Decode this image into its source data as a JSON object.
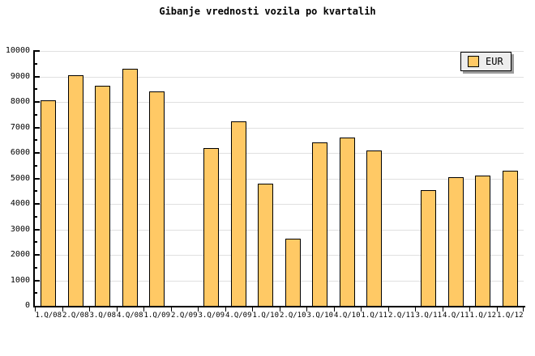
{
  "title": "Gibanje vrednosti vozila po kvartalih",
  "legend": {
    "label": "EUR",
    "position": "top-right"
  },
  "colors": {
    "background": "#FFFFFF",
    "bar_fill": "#FFC965",
    "bar_border": "#000000",
    "gridline": "#E0E0E0",
    "axis": "#000000",
    "legend_bg": "#EDEDED",
    "legend_shadow": "#9C9C9C",
    "text": "#000000"
  },
  "chart_data": {
    "type": "bar",
    "title": "Gibanje vrednosti vozila po kvartalih",
    "xlabel": "",
    "ylabel": "",
    "categories": [
      "1.Q/08",
      "2.Q/08",
      "3.Q/08",
      "4.Q/08",
      "1.Q/09",
      "2.Q/09",
      "3.Q/09",
      "4.Q/09",
      "1.Q/10",
      "2.Q/10",
      "3.Q/10",
      "4.Q/10",
      "1.Q/11",
      "2.Q/11",
      "3.Q/11",
      "4.Q/11",
      "1.Q/12",
      "1.Q/12"
    ],
    "series": [
      {
        "name": "EUR",
        "values": [
          8050,
          9050,
          8650,
          9300,
          8400,
          null,
          6200,
          7250,
          4800,
          2650,
          6400,
          6600,
          6100,
          null,
          4550,
          5050,
          5100,
          5300
        ]
      }
    ],
    "ylim": [
      0,
      10000
    ],
    "y_major_tick": 1000,
    "y_minor_tick": 500,
    "grid": "horizontal",
    "legend_position": "top-right"
  }
}
